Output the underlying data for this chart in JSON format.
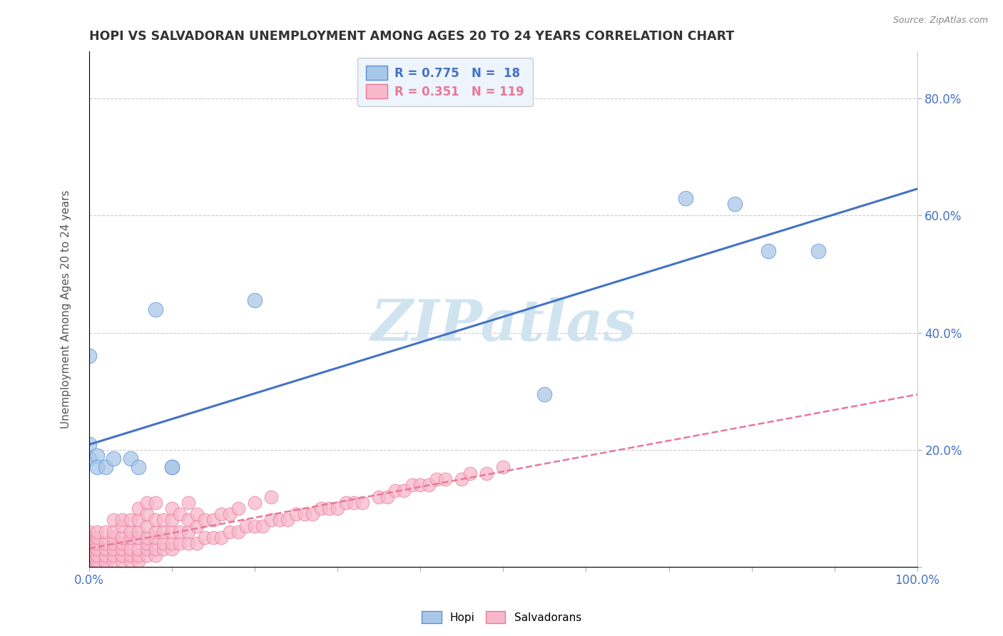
{
  "title": "HOPI VS SALVADORAN UNEMPLOYMENT AMONG AGES 20 TO 24 YEARS CORRELATION CHART",
  "source": "Source: ZipAtlas.com",
  "ylabel": "Unemployment Among Ages 20 to 24 years",
  "hopi_R": 0.775,
  "hopi_N": 18,
  "salv_R": 0.351,
  "salv_N": 119,
  "xlim": [
    0.0,
    1.0
  ],
  "ylim": [
    0.0,
    0.88
  ],
  "hopi_color": "#a8c8e8",
  "salv_color": "#f8b8cc",
  "hopi_edge_color": "#5b8dd9",
  "salv_edge_color": "#e87898",
  "hopi_line_color": "#4472c4",
  "salv_line_color": "#e87898",
  "watermark": "ZIPatlas",
  "watermark_color": "#d0e4f0",
  "legend_bg": "#eef4fb",
  "hopi_x": [
    0.0,
    0.0,
    0.0,
    0.01,
    0.01,
    0.02,
    0.03,
    0.05,
    0.06,
    0.08,
    0.1,
    0.1,
    0.2,
    0.55,
    0.72,
    0.78,
    0.82,
    0.88
  ],
  "hopi_y": [
    0.185,
    0.36,
    0.21,
    0.19,
    0.17,
    0.17,
    0.185,
    0.185,
    0.17,
    0.44,
    0.17,
    0.17,
    0.455,
    0.295,
    0.63,
    0.62,
    0.54,
    0.54
  ],
  "salv_x": [
    0.0,
    0.0,
    0.0,
    0.0,
    0.0,
    0.0,
    0.0,
    0.01,
    0.01,
    0.01,
    0.01,
    0.01,
    0.01,
    0.01,
    0.02,
    0.02,
    0.02,
    0.02,
    0.02,
    0.02,
    0.03,
    0.03,
    0.03,
    0.03,
    0.03,
    0.03,
    0.03,
    0.04,
    0.04,
    0.04,
    0.04,
    0.04,
    0.04,
    0.04,
    0.05,
    0.05,
    0.05,
    0.05,
    0.05,
    0.05,
    0.06,
    0.06,
    0.06,
    0.06,
    0.06,
    0.06,
    0.06,
    0.07,
    0.07,
    0.07,
    0.07,
    0.07,
    0.07,
    0.07,
    0.08,
    0.08,
    0.08,
    0.08,
    0.08,
    0.08,
    0.09,
    0.09,
    0.09,
    0.09,
    0.1,
    0.1,
    0.1,
    0.1,
    0.1,
    0.11,
    0.11,
    0.11,
    0.12,
    0.12,
    0.12,
    0.12,
    0.13,
    0.13,
    0.13,
    0.14,
    0.14,
    0.15,
    0.15,
    0.16,
    0.16,
    0.17,
    0.17,
    0.18,
    0.18,
    0.19,
    0.2,
    0.2,
    0.21,
    0.22,
    0.22,
    0.23,
    0.24,
    0.25,
    0.26,
    0.27,
    0.28,
    0.29,
    0.3,
    0.31,
    0.32,
    0.33,
    0.35,
    0.36,
    0.37,
    0.38,
    0.39,
    0.4,
    0.41,
    0.42,
    0.43,
    0.45,
    0.46,
    0.48,
    0.5
  ],
  "salv_y": [
    0.0,
    0.01,
    0.02,
    0.03,
    0.04,
    0.05,
    0.06,
    0.0,
    0.01,
    0.02,
    0.03,
    0.04,
    0.05,
    0.06,
    0.0,
    0.01,
    0.02,
    0.03,
    0.04,
    0.06,
    0.01,
    0.02,
    0.03,
    0.04,
    0.05,
    0.06,
    0.08,
    0.01,
    0.02,
    0.03,
    0.04,
    0.05,
    0.07,
    0.08,
    0.01,
    0.02,
    0.03,
    0.05,
    0.06,
    0.08,
    0.01,
    0.02,
    0.03,
    0.05,
    0.06,
    0.08,
    0.1,
    0.02,
    0.03,
    0.04,
    0.05,
    0.07,
    0.09,
    0.11,
    0.02,
    0.03,
    0.05,
    0.06,
    0.08,
    0.11,
    0.03,
    0.04,
    0.06,
    0.08,
    0.03,
    0.04,
    0.06,
    0.08,
    0.1,
    0.04,
    0.06,
    0.09,
    0.04,
    0.06,
    0.08,
    0.11,
    0.04,
    0.07,
    0.09,
    0.05,
    0.08,
    0.05,
    0.08,
    0.05,
    0.09,
    0.06,
    0.09,
    0.06,
    0.1,
    0.07,
    0.07,
    0.11,
    0.07,
    0.08,
    0.12,
    0.08,
    0.08,
    0.09,
    0.09,
    0.09,
    0.1,
    0.1,
    0.1,
    0.11,
    0.11,
    0.11,
    0.12,
    0.12,
    0.13,
    0.13,
    0.14,
    0.14,
    0.14,
    0.15,
    0.15,
    0.15,
    0.16,
    0.16,
    0.17
  ]
}
